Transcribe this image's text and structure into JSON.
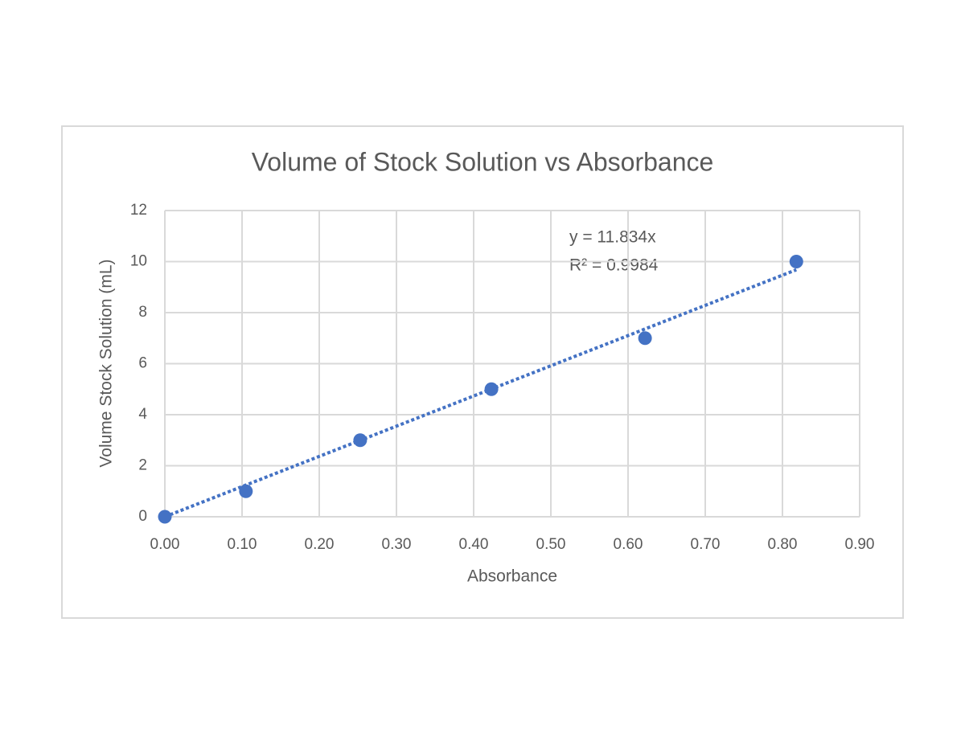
{
  "chart_data": {
    "type": "scatter",
    "title": "Volume of Stock Solution vs Absorbance",
    "x_label": "Absorbance",
    "y_label": "Volume Stock Solution (mL)",
    "x": [
      0,
      0.105,
      0.253,
      0.423,
      0.622,
      0.818
    ],
    "values": [
      0,
      1,
      3,
      5,
      7,
      10
    ],
    "color": "#4472c4",
    "xlim": [
      0,
      0.9
    ],
    "xticks": [
      {
        "value": 0,
        "label": "0.00"
      },
      {
        "value": 0.1,
        "label": "0.10"
      },
      {
        "value": 0.2,
        "label": "0.20"
      },
      {
        "value": 0.3,
        "label": "0.30"
      },
      {
        "value": 0.4,
        "label": "0.40"
      },
      {
        "value": 0.5,
        "label": "0.50"
      },
      {
        "value": 0.6,
        "label": "0.60"
      },
      {
        "value": 0.7,
        "label": "0.70"
      },
      {
        "value": 0.8,
        "label": "0.80"
      },
      {
        "value": 0.9,
        "label": "0.90"
      }
    ],
    "ylim": [
      0,
      12
    ],
    "yticks": [
      0,
      2,
      4,
      6,
      8,
      10,
      12
    ],
    "grid": true,
    "trendline": {
      "slope": 11.834,
      "label": "y = 11.834x",
      "r2_label": "R² = 0.9984"
    }
  }
}
